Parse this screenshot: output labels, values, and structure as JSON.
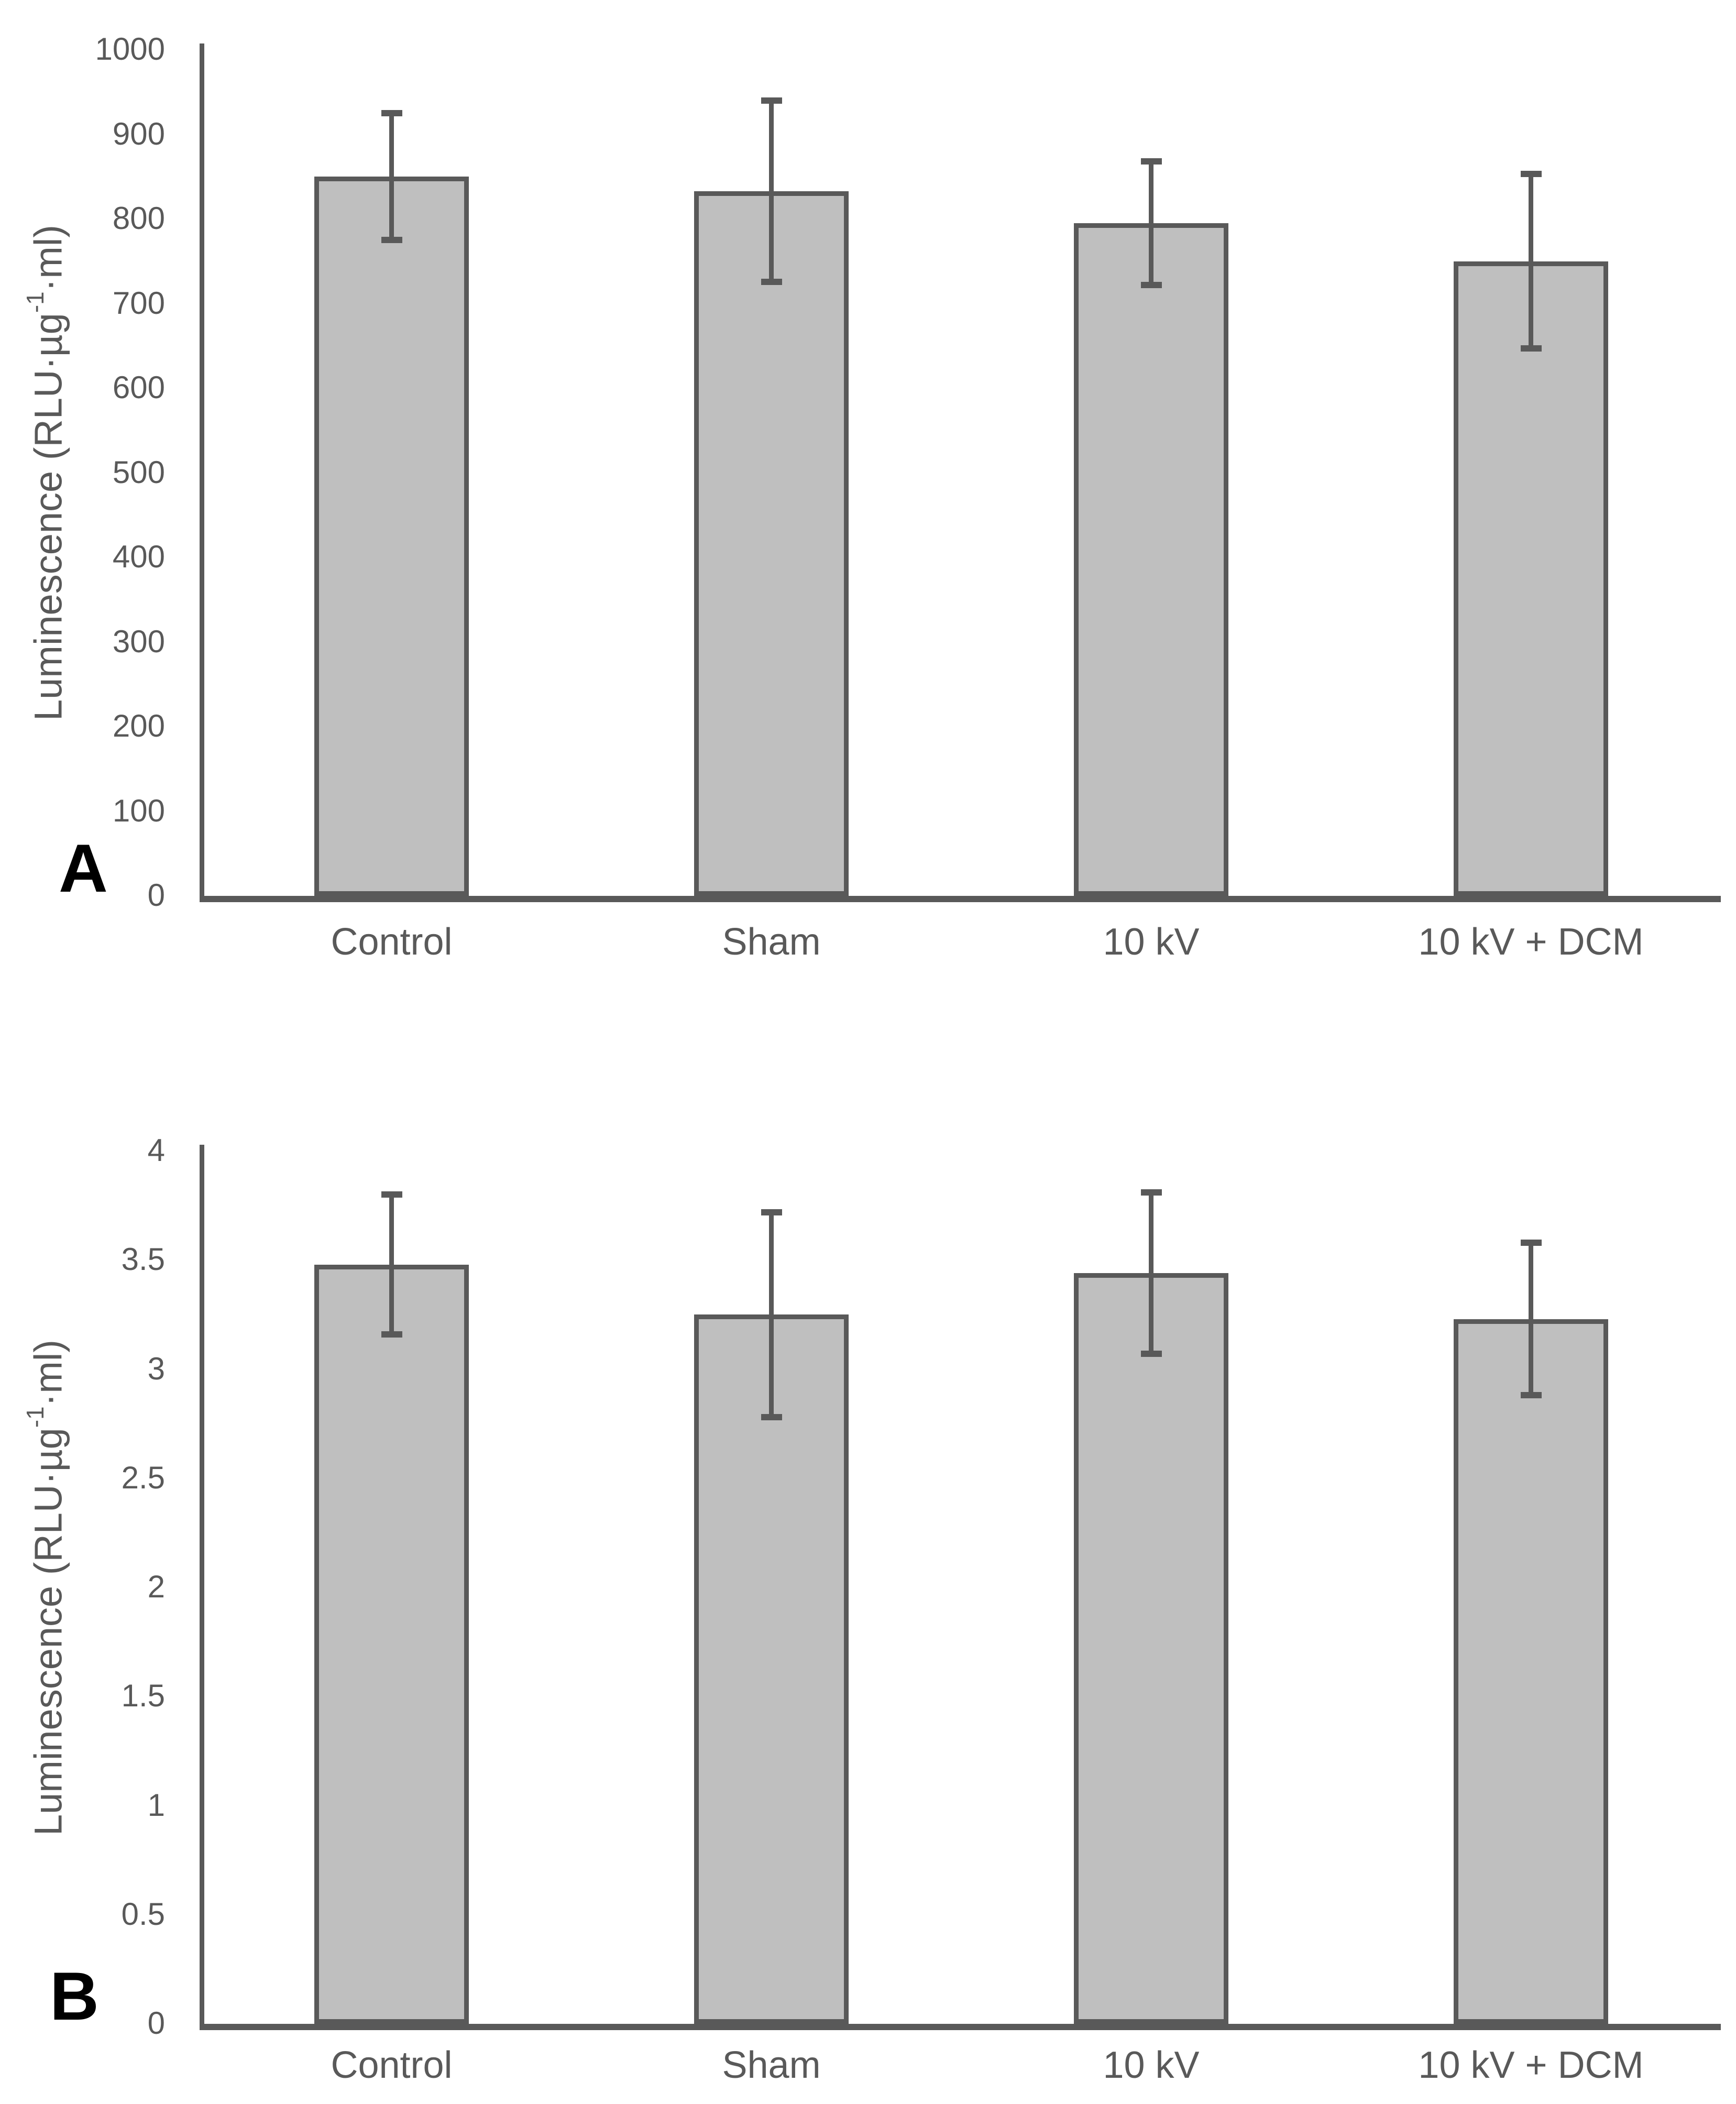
{
  "figure": {
    "background": "#ffffff",
    "panel_labels": [
      "A",
      "B"
    ]
  },
  "colors": {
    "bar_fill": "#bfbfbf",
    "bar_border": "#595959",
    "error_bar": "#595959",
    "axis_line": "#595959",
    "text": "#595959",
    "panel_letter": "#000000"
  },
  "chart_data": [
    {
      "type": "bar",
      "panel_label": "A",
      "title": "",
      "xlabel": "",
      "ylabel": "Luminescence (RLU·µg⁻¹·ml)",
      "ylabel_parts": {
        "prefix": "Luminescence (RLU·µg",
        "superscript": "-1",
        "suffix": "·ml)"
      },
      "categories": [
        "Control",
        "Sham",
        "10 kV",
        "10 kV + DCM"
      ],
      "values": [
        850,
        833,
        795,
        750
      ],
      "errors_plus": [
        75,
        107,
        73,
        103
      ],
      "errors_minus": [
        75,
        107,
        73,
        103
      ],
      "ylim": [
        0,
        1000
      ],
      "ytick_values": [
        0,
        100,
        200,
        300,
        400,
        500,
        600,
        700,
        800,
        900,
        1000
      ],
      "ytick_labels": [
        "0",
        "100",
        "200",
        "300",
        "400",
        "500",
        "600",
        "700",
        "800",
        "900",
        "1000"
      ],
      "grid": false,
      "legend": "none"
    },
    {
      "type": "bar",
      "panel_label": "B",
      "title": "",
      "xlabel": "",
      "ylabel": "Luminescence (RLU·µg⁻¹·ml)",
      "ylabel_parts": {
        "prefix": "Luminescence (RLU·µg",
        "superscript": "-1",
        "suffix": "·ml)"
      },
      "categories": [
        "Control",
        "Sham",
        "10 kV",
        "10 kV + DCM"
      ],
      "values": [
        3.48,
        3.25,
        3.44,
        3.23
      ],
      "errors_plus": [
        0.32,
        0.47,
        0.37,
        0.35
      ],
      "errors_minus": [
        0.32,
        0.47,
        0.37,
        0.35
      ],
      "ylim": [
        0,
        4
      ],
      "ytick_values": [
        0,
        0.5,
        1,
        1.5,
        2,
        2.5,
        3,
        3.5,
        4
      ],
      "ytick_labels": [
        "0",
        "0.5",
        "1",
        "1.5",
        "2",
        "2.5",
        "3",
        "3.5",
        "4"
      ],
      "grid": false,
      "legend": "none"
    }
  ]
}
